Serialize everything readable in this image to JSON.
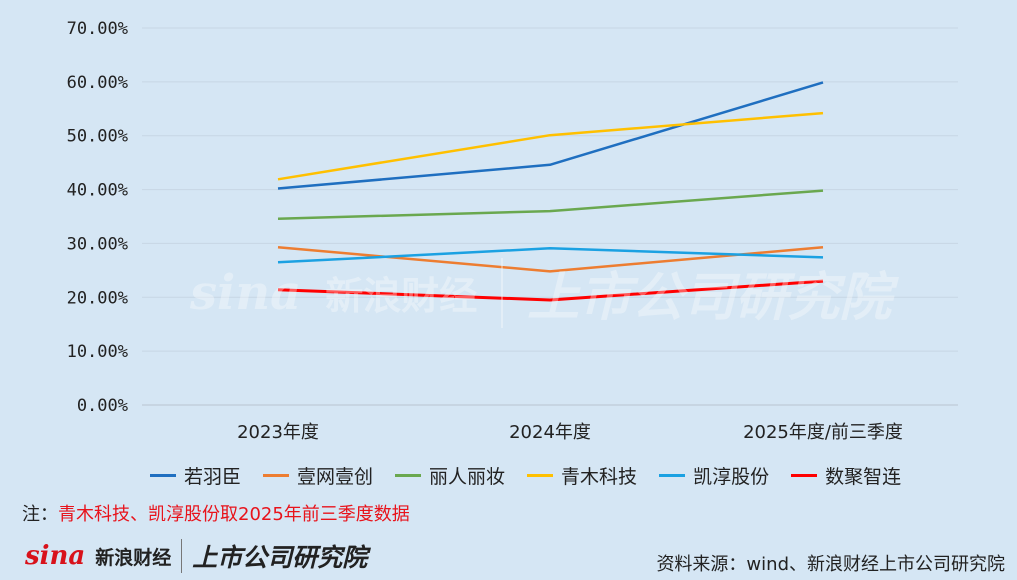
{
  "chart_data": {
    "type": "line",
    "categories": [
      "2023年度",
      "2024年度",
      "2025年度/前三季度"
    ],
    "ylim": [
      0,
      70
    ],
    "yticks": [
      "0.00%",
      "10.00%",
      "20.00%",
      "30.00%",
      "40.00%",
      "50.00%",
      "60.00%",
      "70.00%"
    ],
    "grid": "horizontal",
    "legend_position": "bottom",
    "series": [
      {
        "name": "若羽臣",
        "color": "#1f6fc0",
        "values": [
          40.2,
          44.6,
          59.9
        ]
      },
      {
        "name": "壹网壹创",
        "color": "#ed7d31",
        "values": [
          29.3,
          24.8,
          29.3
        ]
      },
      {
        "name": "丽人丽妆",
        "color": "#6aa84f",
        "values": [
          34.6,
          36.0,
          39.8
        ]
      },
      {
        "name": "青木科技",
        "color": "#ffc000",
        "values": [
          41.9,
          50.1,
          54.2
        ]
      },
      {
        "name": "凯淳股份",
        "color": "#1ba1e2",
        "values": [
          26.5,
          29.1,
          27.4
        ]
      },
      {
        "name": "数聚智连",
        "color": "#ff0000",
        "values": [
          21.4,
          19.5,
          23.0
        ]
      }
    ]
  },
  "note": {
    "prefix": "注：",
    "text": "青木科技、凯淳股份取2025年前三季度数据"
  },
  "logo": {
    "sina": "sina",
    "cn": "新浪财经",
    "institute": "上市公司研究院"
  },
  "source": "资料来源：wind、新浪财经上市公司研究院"
}
